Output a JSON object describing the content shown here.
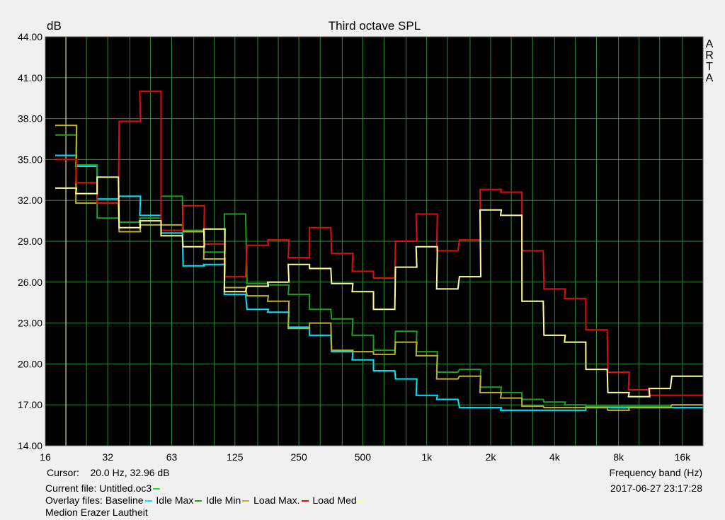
{
  "chart_data": {
    "type": "line",
    "title": "Third octave SPL",
    "ylabel": "dB",
    "xlabel": "Frequency band (Hz)",
    "brand": "ARTA",
    "ylim": [
      14,
      44
    ],
    "yticks": [
      "14.00",
      "17.00",
      "20.00",
      "23.00",
      "26.00",
      "29.00",
      "32.00",
      "35.00",
      "38.00",
      "41.00",
      "44.00"
    ],
    "xticks": [
      "16",
      "32",
      "63",
      "125",
      "250",
      "500",
      "1k",
      "2k",
      "4k",
      "8k",
      "16k"
    ],
    "grid": true,
    "background": "#000000",
    "grid_color": "#2e8b3a",
    "bands": [
      "20",
      "25",
      "31.5",
      "40",
      "50",
      "63",
      "80",
      "100",
      "125",
      "160",
      "200",
      "250",
      "315",
      "400",
      "500",
      "630",
      "800",
      "1k",
      "1.25k",
      "1.6k",
      "2k",
      "2.5k",
      "3.15k",
      "4k",
      "5k",
      "6.3k",
      "8k",
      "10k",
      "12.5k",
      "16k",
      "20k"
    ],
    "series": [
      {
        "name": "Baseline",
        "color": "#00e5ff",
        "values": [
          35.3,
          34.5,
          32.1,
          32.3,
          30.9,
          29.6,
          27.2,
          27.3,
          25.1,
          24.0,
          23.8,
          22.7,
          22.1,
          20.9,
          20.3,
          19.5,
          18.9,
          17.7,
          17.4,
          16.8,
          16.8,
          16.6,
          16.6,
          16.6,
          16.6,
          16.8,
          16.8,
          16.8,
          16.8,
          16.8,
          16.8
        ]
      },
      {
        "name": "Idle Max",
        "color": "#1f9e1f",
        "values": [
          36.8,
          34.6,
          30.7,
          30.4,
          30.7,
          32.3,
          29.8,
          28.2,
          31.0,
          25.9,
          25.8,
          25.1,
          24.0,
          23.3,
          22.1,
          21.0,
          22.4,
          20.9,
          19.4,
          19.6,
          18.3,
          17.9,
          17.4,
          17.2,
          17.0,
          16.9,
          16.9,
          16.9,
          16.9,
          17.0,
          17.0
        ]
      },
      {
        "name": "Idle Min",
        "color": "#bfb22a",
        "values": [
          37.5,
          31.8,
          31.8,
          29.7,
          30.2,
          30.2,
          29.7,
          27.7,
          25.6,
          25.0,
          24.6,
          22.6,
          23.0,
          21.0,
          20.9,
          20.7,
          21.6,
          20.6,
          18.9,
          19.1,
          17.9,
          17.5,
          16.9,
          16.8,
          16.8,
          16.8,
          16.6,
          16.8,
          16.8,
          17.0,
          17.0
        ]
      },
      {
        "name": "Load Max.",
        "color": "#e00d0d",
        "values": [
          35.0,
          33.3,
          31.8,
          37.8,
          40.0,
          29.8,
          31.6,
          28.8,
          26.4,
          28.7,
          29.1,
          27.8,
          30.0,
          28.1,
          26.8,
          26.3,
          29.0,
          31.0,
          28.3,
          29.1,
          32.8,
          32.6,
          28.3,
          25.5,
          24.8,
          22.5,
          19.4,
          18.1,
          17.7,
          17.7,
          17.7
        ]
      },
      {
        "name": "Load Med",
        "color": "#ffff99",
        "values": [
          32.9,
          32.5,
          33.7,
          30.0,
          30.5,
          29.4,
          28.6,
          29.9,
          25.3,
          25.7,
          26.0,
          27.3,
          27.0,
          25.9,
          25.3,
          24.0,
          27.1,
          28.6,
          25.5,
          26.4,
          31.3,
          30.9,
          24.6,
          22.1,
          21.6,
          19.6,
          17.9,
          17.6,
          18.2,
          19.1,
          19.1
        ]
      }
    ],
    "cursor_freq": 20.0
  },
  "info": {
    "cursor_label": "Cursor:",
    "cursor_value": "20.0 Hz, 32.96 dB",
    "current_file_label": "Current file:",
    "current_file": "Untitled.oc3",
    "current_file_color": "#33dd33",
    "overlay_label": "Overlay files:",
    "frequency_label": "Frequency band (Hz)",
    "datetime": "2017-06-27   23:17:28",
    "description": "Medion Erazer Lautheit"
  }
}
